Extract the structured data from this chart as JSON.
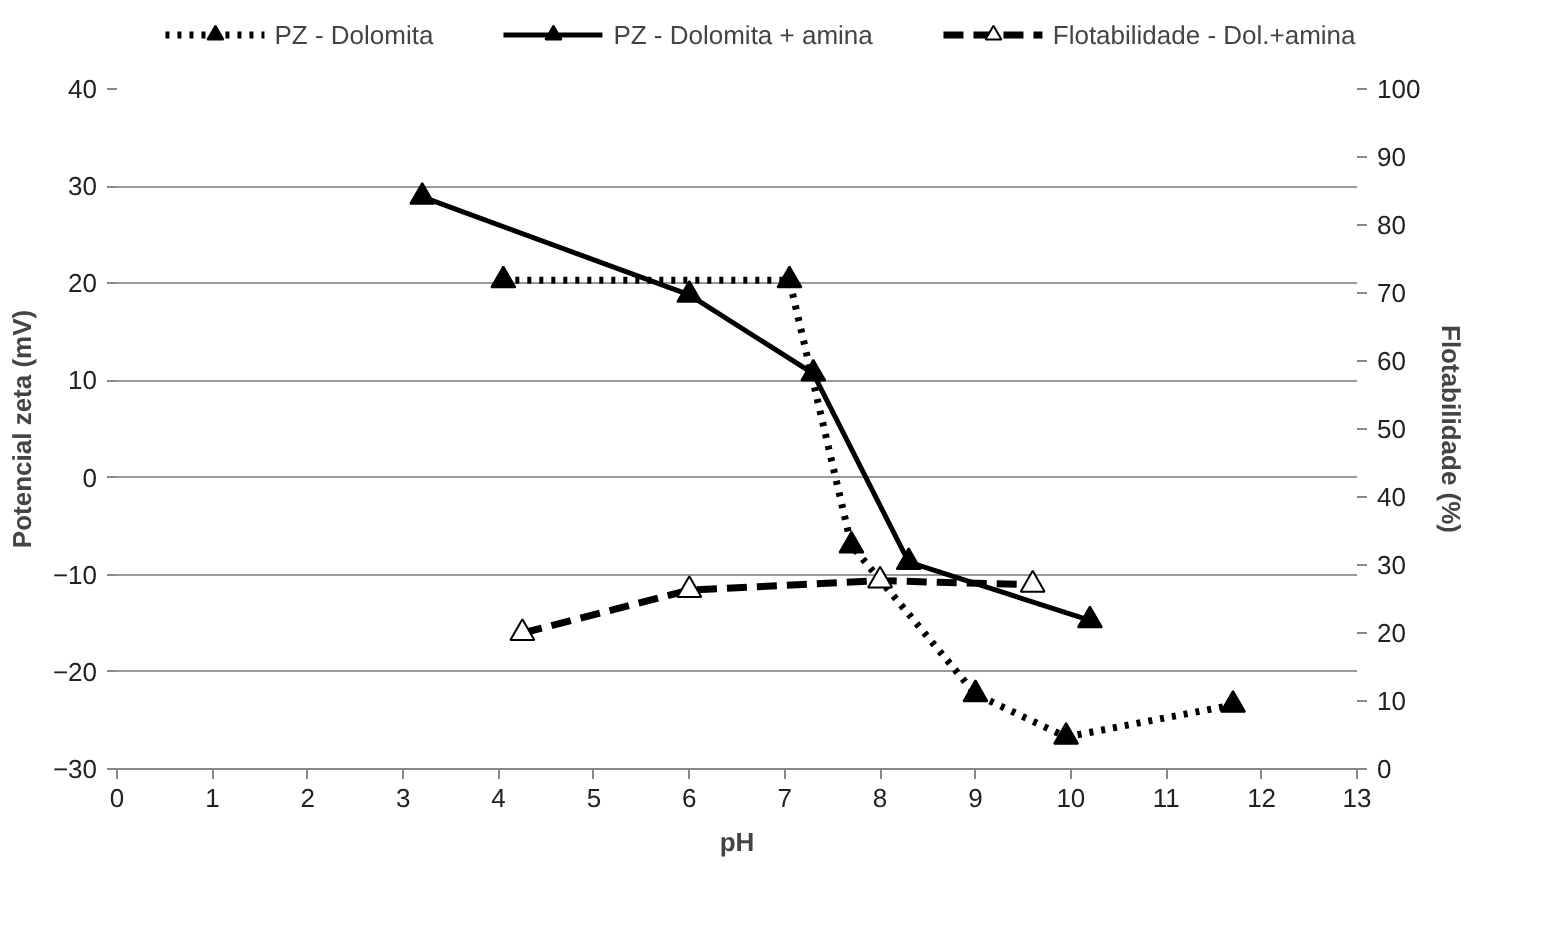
{
  "chart_data": {
    "type": "line",
    "xlabel": "pH",
    "ylabel": "Potencial zeta (mV)",
    "y2label": "Flotabilidade (%)",
    "xlim": [
      0,
      13
    ],
    "xticks": [
      0,
      1,
      2,
      3,
      4,
      5,
      6,
      7,
      8,
      9,
      10,
      11,
      12,
      13
    ],
    "ylim": [
      -30,
      40
    ],
    "yticks": [
      -30,
      -20,
      -10,
      0,
      10,
      20,
      30,
      40
    ],
    "y2lim": [
      0,
      100
    ],
    "y2ticks": [
      0,
      10,
      20,
      30,
      40,
      50,
      60,
      70,
      80,
      90,
      100
    ],
    "grid": "y",
    "legend": "top",
    "series": [
      {
        "name": "PZ - Dolomita",
        "color": "#000000",
        "line_style": "dotted",
        "marker": "triangle",
        "x": [
          4.05,
          7.05,
          7.7,
          9.0,
          9.95,
          11.7
        ],
        "values": [
          20.3,
          20.3,
          -7.0,
          -22.3,
          -26.7,
          -23.4
        ]
      },
      {
        "name": "PZ - Dolomita + amina",
        "color": "#000000",
        "line_style": "solid",
        "marker": "triangle",
        "x": [
          3.2,
          6.0,
          7.3,
          8.3,
          10.2
        ],
        "values": [
          28.9,
          18.8,
          10.7,
          -8.7,
          -14.7
        ]
      },
      {
        "name": "Flotabilidade - Dol.+amina",
        "color": "#000000",
        "line_style": "dashed",
        "marker": "triangle_open",
        "axis": "y2",
        "x": [
          4.25,
          6.0,
          8.0,
          9.6
        ],
        "values": [
          20,
          26.3,
          27.7,
          27.1
        ]
      }
    ]
  }
}
